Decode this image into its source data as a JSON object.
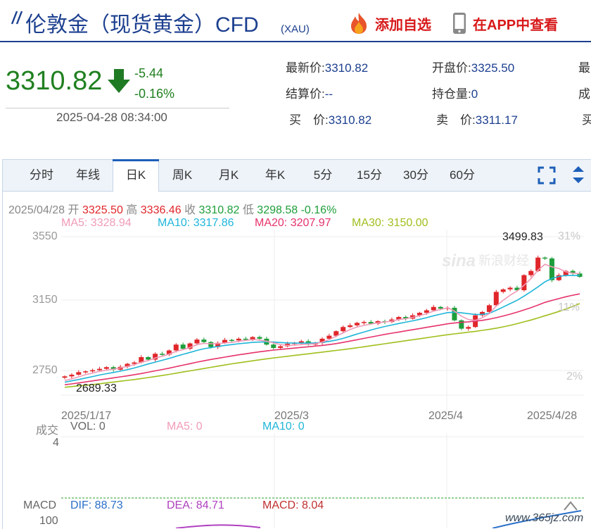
{
  "header": {
    "title": "伦敦金（现货黄金）CFD",
    "code": "(XAU)",
    "add_watchlist_label": "添加自选",
    "view_in_app_label": "在APP中查看"
  },
  "quote": {
    "price": "3310.82",
    "change": "-5.44",
    "change_pct": "-0.16%",
    "datetime": "2025-04-28 08:34:00",
    "fields": {
      "latest_label": "最新价:",
      "latest_value": "3310.82",
      "open_label": "开盘价:",
      "open_value": "3325.50",
      "col3_row1_label": "最",
      "settle_label": "结算价:",
      "settle_value": "--",
      "oi_label": "持仓量:",
      "oi_value": "0",
      "col3_row2_label": "成",
      "bid_label": "买　价:",
      "bid_value": "3310.82",
      "ask_label": "卖　价:",
      "ask_value": "3311.17",
      "col3_row3_label": "买"
    }
  },
  "tabs": [
    "分时",
    "年线",
    "日K",
    "周K",
    "月K",
    "年K",
    "5分",
    "15分",
    "30分",
    "60分"
  ],
  "active_tab": "日K",
  "ohlc": {
    "date": "2025/04/28",
    "open_label": "开",
    "open": "3325.50",
    "high_label": "高",
    "high": "3336.46",
    "close_label": "收",
    "close": "3310.82",
    "low_label": "低",
    "low": "3298.58",
    "pct": "-0.16%"
  },
  "ma": {
    "ma5": "MA5: 3328.94",
    "ma10": "MA10: 3317.86",
    "ma20": "MA20: 3207.97",
    "ma30": "MA30: 3150.00"
  },
  "colors": {
    "up": "#e0262a",
    "down": "#1e9e3a",
    "ma5": "#f09bb8",
    "ma10": "#1fb6d9",
    "ma20": "#e6336b",
    "ma30": "#a0bf1e",
    "brand": "#1c3f8f"
  },
  "chart_data": {
    "type": "candlestick",
    "y_ticks": [
      "3550",
      "3150",
      "2750"
    ],
    "pct_ticks": [
      "31%",
      "11%",
      "2%"
    ],
    "x_ticks": [
      "2025/1/17",
      "2025/3",
      "2025/4",
      "2025/4/28"
    ],
    "max_label": "3499.83",
    "min_label": "2689.33",
    "ylim": [
      2650,
      3570
    ],
    "closes": [
      2715,
      2725,
      2740,
      2745,
      2752,
      2760,
      2770,
      2755,
      2772,
      2790,
      2798,
      2830,
      2815,
      2850,
      2845,
      2870,
      2905,
      2880,
      2912,
      2935,
      2920,
      2890,
      2915,
      2933,
      2930,
      2940,
      2935,
      2950,
      2940,
      2905,
      2885,
      2895,
      2910,
      2915,
      2925,
      2905,
      2915,
      2940,
      2958,
      2985,
      3010,
      3020,
      3035,
      3040,
      3030,
      3045,
      3040,
      3055,
      3070,
      3060,
      3080,
      3095,
      3110,
      3130,
      3120,
      3125,
      3050,
      3000,
      3010,
      3080,
      3100,
      3140,
      3220,
      3235,
      3245,
      3230,
      3320,
      3345,
      3425,
      3420,
      3290,
      3320,
      3345,
      3330,
      3310
    ],
    "ma5": [
      2690,
      2700,
      2712,
      2725,
      2735,
      2745,
      2752,
      2758,
      2765,
      2775,
      2785,
      2800,
      2810,
      2825,
      2835,
      2848,
      2865,
      2875,
      2888,
      2905,
      2912,
      2910,
      2910,
      2915,
      2918,
      2925,
      2930,
      2935,
      2932,
      2925,
      2915,
      2905,
      2900,
      2902,
      2905,
      2908,
      2910,
      2920,
      2935,
      2955,
      2975,
      2995,
      3010,
      3020,
      3028,
      3035,
      3040,
      3045,
      3055,
      3060,
      3068,
      3078,
      3090,
      3105,
      3115,
      3125,
      3105,
      3075,
      3055,
      3050,
      3065,
      3090,
      3135,
      3170,
      3200,
      3225,
      3260,
      3300,
      3350,
      3385,
      3370,
      3360,
      3340,
      3332,
      3329
    ],
    "ma10": [
      2680,
      2688,
      2696,
      2705,
      2714,
      2723,
      2731,
      2738,
      2746,
      2755,
      2765,
      2777,
      2789,
      2800,
      2811,
      2822,
      2835,
      2847,
      2858,
      2870,
      2880,
      2887,
      2894,
      2900,
      2905,
      2910,
      2914,
      2918,
      2920,
      2921,
      2920,
      2917,
      2915,
      2914,
      2914,
      2914,
      2915,
      2918,
      2924,
      2932,
      2942,
      2955,
      2968,
      2980,
      2992,
      3003,
      3013,
      3022,
      3031,
      3039,
      3047,
      3056,
      3066,
      3077,
      3087,
      3096,
      3098,
      3095,
      3090,
      3085,
      3085,
      3092,
      3110,
      3130,
      3150,
      3170,
      3195,
      3222,
      3250,
      3280,
      3300,
      3312,
      3318,
      3318,
      3318
    ],
    "ma20": [
      2665,
      2670,
      2676,
      2682,
      2688,
      2694,
      2700,
      2706,
      2712,
      2718,
      2725,
      2732,
      2740,
      2748,
      2756,
      2764,
      2773,
      2782,
      2791,
      2800,
      2808,
      2816,
      2823,
      2830,
      2837,
      2844,
      2850,
      2856,
      2862,
      2867,
      2872,
      2876,
      2880,
      2884,
      2888,
      2892,
      2896,
      2900,
      2905,
      2911,
      2918,
      2926,
      2934,
      2942,
      2950,
      2958,
      2966,
      2973,
      2980,
      2987,
      2994,
      3001,
      3008,
      3015,
      3022,
      3029,
      3034,
      3038,
      3041,
      3045,
      3050,
      3057,
      3066,
      3076,
      3087,
      3099,
      3112,
      3126,
      3141,
      3157,
      3169,
      3180,
      3191,
      3200,
      3208
    ],
    "ma30": [
      2650,
      2654,
      2658,
      2662,
      2666,
      2671,
      2676,
      2681,
      2686,
      2691,
      2696,
      2702,
      2708,
      2714,
      2720,
      2727,
      2734,
      2741,
      2748,
      2755,
      2762,
      2769,
      2776,
      2783,
      2790,
      2796,
      2802,
      2808,
      2814,
      2820,
      2825,
      2830,
      2835,
      2840,
      2845,
      2850,
      2855,
      2860,
      2865,
      2870,
      2875,
      2880,
      2886,
      2892,
      2898,
      2904,
      2910,
      2916,
      2922,
      2928,
      2934,
      2940,
      2946,
      2952,
      2958,
      2964,
      2969,
      2974,
      2979,
      2984,
      2990,
      2996,
      3003,
      3011,
      3020,
      3030,
      3041,
      3052,
      3064,
      3077,
      3090,
      3103,
      3117,
      3133,
      3150
    ]
  },
  "volume": {
    "label": "成交",
    "vol": "VOL: 0",
    "ma5": "MA5: 0",
    "ma10": "MA10: 0",
    "scale": "4"
  },
  "macd": {
    "label": "MACD",
    "dif": "DIF: 88.73",
    "dea": "DEA: 84.71",
    "macd": "MACD: 8.04",
    "scale": "100"
  },
  "watermark": "新浪财经",
  "site_watermark": "www.365jz.com"
}
